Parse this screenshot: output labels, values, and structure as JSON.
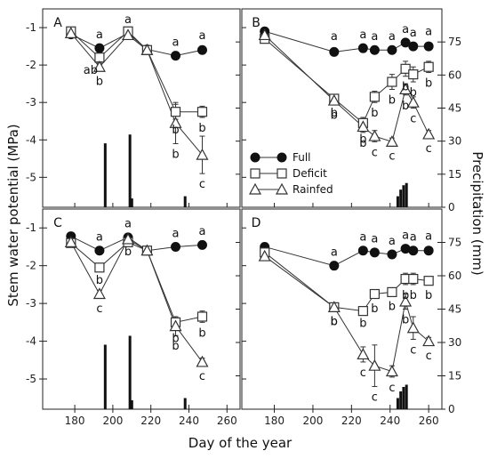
{
  "figure": {
    "y_left_label": "Stem water potential (MPa)",
    "y_right_label": "Precipitation (mm)",
    "x_label": "Day of the year"
  },
  "legend": [
    {
      "name": "Full",
      "marker": "filled-circle"
    },
    {
      "name": "Deficit",
      "marker": "open-square"
    },
    {
      "name": "Rainfed",
      "marker": "open-triangle"
    }
  ],
  "chart_data": [
    {
      "type": "line",
      "panel": "A",
      "xlim": [
        165,
        265
      ],
      "ylim": [
        -5.8,
        -0.5
      ],
      "precip_lim": [
        0,
        90
      ],
      "x_ticks": [
        180,
        200,
        220,
        240,
        260
      ],
      "y_ticks": [
        -1,
        -2,
        -3,
        -4,
        -5
      ],
      "precip_ticks": [
        0,
        15,
        30,
        45,
        60,
        75
      ],
      "series": [
        {
          "name": "Full",
          "x": [
            178,
            193,
            208,
            218,
            233,
            247
          ],
          "values": [
            -1.18,
            -1.55,
            -1.15,
            -1.58,
            -1.75,
            -1.6
          ],
          "err": [
            0.05,
            0.05,
            0.05,
            0.05,
            0.05,
            0.08
          ],
          "labels": [
            "",
            "a",
            "a",
            "",
            "a",
            "a"
          ]
        },
        {
          "name": "Deficit",
          "x": [
            178,
            193,
            208,
            218,
            233,
            247
          ],
          "values": [
            -1.1,
            -1.8,
            -1.1,
            -1.6,
            -3.25,
            -3.25
          ],
          "err": [
            0.05,
            0.05,
            0.05,
            0.05,
            0.2,
            0.15
          ],
          "labels": [
            "",
            "ab",
            "",
            "",
            "b",
            "b"
          ]
        },
        {
          "name": "Rainfed",
          "x": [
            178,
            193,
            208,
            218,
            233,
            247
          ],
          "values": [
            -1.15,
            -2.05,
            -1.2,
            -1.6,
            -3.55,
            -4.4
          ],
          "err": [
            0.05,
            0.1,
            0.05,
            0.05,
            0.55,
            0.5
          ],
          "labels": [
            "",
            "b",
            "",
            "",
            "b",
            "c"
          ]
        }
      ],
      "precipitation": {
        "x": [
          196,
          209,
          210,
          238
        ],
        "values": [
          29,
          33,
          4,
          5
        ]
      }
    },
    {
      "type": "line",
      "panel": "B",
      "xlim": [
        165,
        265
      ],
      "ylim": [
        -5.8,
        -0.5
      ],
      "precip_lim": [
        0,
        90
      ],
      "x_ticks": [
        180,
        200,
        220,
        240,
        260
      ],
      "y_ticks": [
        -1,
        -2,
        -3,
        -4,
        -5
      ],
      "precip_ticks": [
        0,
        15,
        30,
        45,
        60,
        75
      ],
      "series": [
        {
          "name": "Full",
          "x": [
            175,
            211,
            226,
            232,
            241,
            248,
            252,
            260
          ],
          "values": [
            -1.1,
            -1.65,
            -1.55,
            -1.6,
            -1.6,
            -1.4,
            -1.5,
            -1.5
          ],
          "err": [
            0.05,
            0.1,
            0.05,
            0.05,
            0.05,
            0.05,
            0.05,
            0.08
          ],
          "labels": [
            "",
            "a",
            "a",
            "a",
            "a",
            "a",
            "a",
            "a"
          ]
        },
        {
          "name": "Deficit",
          "x": [
            175,
            211,
            226,
            232,
            241,
            248,
            252,
            260
          ],
          "values": [
            -1.3,
            -2.9,
            -3.55,
            -2.85,
            -2.45,
            -2.1,
            -2.25,
            -2.05
          ],
          "err": [
            0.05,
            0.1,
            0.15,
            0.15,
            0.2,
            0.2,
            0.2,
            0.15
          ],
          "labels": [
            "",
            "b",
            "b",
            "b",
            "b",
            "b",
            "b",
            "b"
          ]
        },
        {
          "name": "Rainfed",
          "x": [
            175,
            211,
            226,
            232,
            241,
            248,
            252,
            260
          ],
          "values": [
            -1.2,
            -2.95,
            -3.65,
            -3.9,
            -4.05,
            -2.65,
            -3.0,
            -3.85
          ],
          "err": [
            0.05,
            0.1,
            0.15,
            0.15,
            0.1,
            0.15,
            0.15,
            0.1
          ],
          "labels": [
            "",
            "b",
            "b",
            "c",
            "c",
            "b",
            "c",
            "c"
          ]
        }
      ],
      "precipitation": {
        "x": [
          244,
          245.5,
          247,
          248.5
        ],
        "values": [
          5,
          8,
          10,
          11
        ]
      }
    },
    {
      "type": "line",
      "panel": "C",
      "xlim": [
        165,
        265
      ],
      "ylim": [
        -5.8,
        -0.5
      ],
      "precip_lim": [
        0,
        90
      ],
      "x_ticks": [
        180,
        200,
        220,
        240,
        260
      ],
      "y_ticks": [
        -1,
        -2,
        -3,
        -4,
        -5
      ],
      "precip_ticks": [
        0,
        15,
        30,
        45,
        60,
        75
      ],
      "series": [
        {
          "name": "Full",
          "x": [
            178,
            193,
            208,
            218,
            233,
            247
          ],
          "values": [
            -1.22,
            -1.6,
            -1.25,
            -1.6,
            -1.5,
            -1.45
          ],
          "err": [
            0.05,
            0.05,
            0.05,
            0.05,
            0.05,
            0.05
          ],
          "labels": [
            "",
            "a",
            "a",
            "",
            "a",
            "a"
          ]
        },
        {
          "name": "Deficit",
          "x": [
            178,
            193,
            208,
            218,
            233,
            247
          ],
          "values": [
            -1.4,
            -2.05,
            -1.38,
            -1.6,
            -3.5,
            -3.35
          ],
          "err": [
            0.05,
            0.05,
            0.05,
            0.05,
            0.15,
            0.15
          ],
          "labels": [
            "",
            "b",
            "",
            "",
            "b",
            "b"
          ]
        },
        {
          "name": "Rainfed",
          "x": [
            178,
            193,
            208,
            218,
            233,
            247
          ],
          "values": [
            -1.38,
            -2.75,
            -1.3,
            -1.6,
            -3.6,
            -4.55
          ],
          "err": [
            0.05,
            0.1,
            0.05,
            0.05,
            0.25,
            0.1
          ],
          "labels": [
            "",
            "c",
            "b",
            "",
            "b",
            "c"
          ]
        }
      ],
      "precipitation": {
        "x": [
          196,
          209,
          210,
          238
        ],
        "values": [
          29,
          33,
          4,
          5
        ]
      }
    },
    {
      "type": "line",
      "panel": "D",
      "xlim": [
        165,
        265
      ],
      "ylim": [
        -5.8,
        -0.5
      ],
      "precip_lim": [
        0,
        90
      ],
      "x_ticks": [
        180,
        200,
        220,
        240,
        260
      ],
      "y_ticks": [
        -1,
        -2,
        -3,
        -4,
        -5
      ],
      "precip_ticks": [
        0,
        15,
        30,
        45,
        60,
        75
      ],
      "series": [
        {
          "name": "Full",
          "x": [
            175,
            211,
            226,
            232,
            241,
            248,
            252,
            260
          ],
          "values": [
            -1.5,
            -2.0,
            -1.6,
            -1.65,
            -1.7,
            -1.55,
            -1.6,
            -1.6
          ],
          "err": [
            0.1,
            0.05,
            0.05,
            0.05,
            0.05,
            0.05,
            0.05,
            0.08
          ],
          "labels": [
            "",
            "a",
            "a",
            "a",
            "a",
            "a",
            "a",
            "a"
          ]
        },
        {
          "name": "Deficit",
          "x": [
            175,
            211,
            226,
            232,
            241,
            248,
            252,
            260
          ],
          "values": [
            -1.65,
            -3.1,
            -3.2,
            -2.75,
            -2.7,
            -2.35,
            -2.35,
            -2.4
          ],
          "err": [
            0.1,
            0.1,
            0.05,
            0.1,
            0.1,
            0.15,
            0.15,
            0.1
          ],
          "labels": [
            "",
            "b",
            "b",
            "b",
            "b",
            "b",
            "b",
            "b"
          ]
        },
        {
          "name": "Rainfed",
          "x": [
            175,
            211,
            226,
            232,
            241,
            248,
            252,
            260
          ],
          "values": [
            -1.75,
            -3.1,
            -4.35,
            -4.65,
            -4.8,
            -2.95,
            -3.65,
            -4.0
          ],
          "err": [
            0.1,
            0.1,
            0.2,
            0.55,
            0.15,
            0.2,
            0.3,
            0.1
          ],
          "labels": [
            "",
            "b",
            "c",
            "c",
            "c",
            "b",
            "c",
            "c"
          ]
        }
      ],
      "precipitation": {
        "x": [
          244,
          245.5,
          247,
          248.5
        ],
        "values": [
          5,
          8,
          10,
          11
        ]
      }
    }
  ]
}
